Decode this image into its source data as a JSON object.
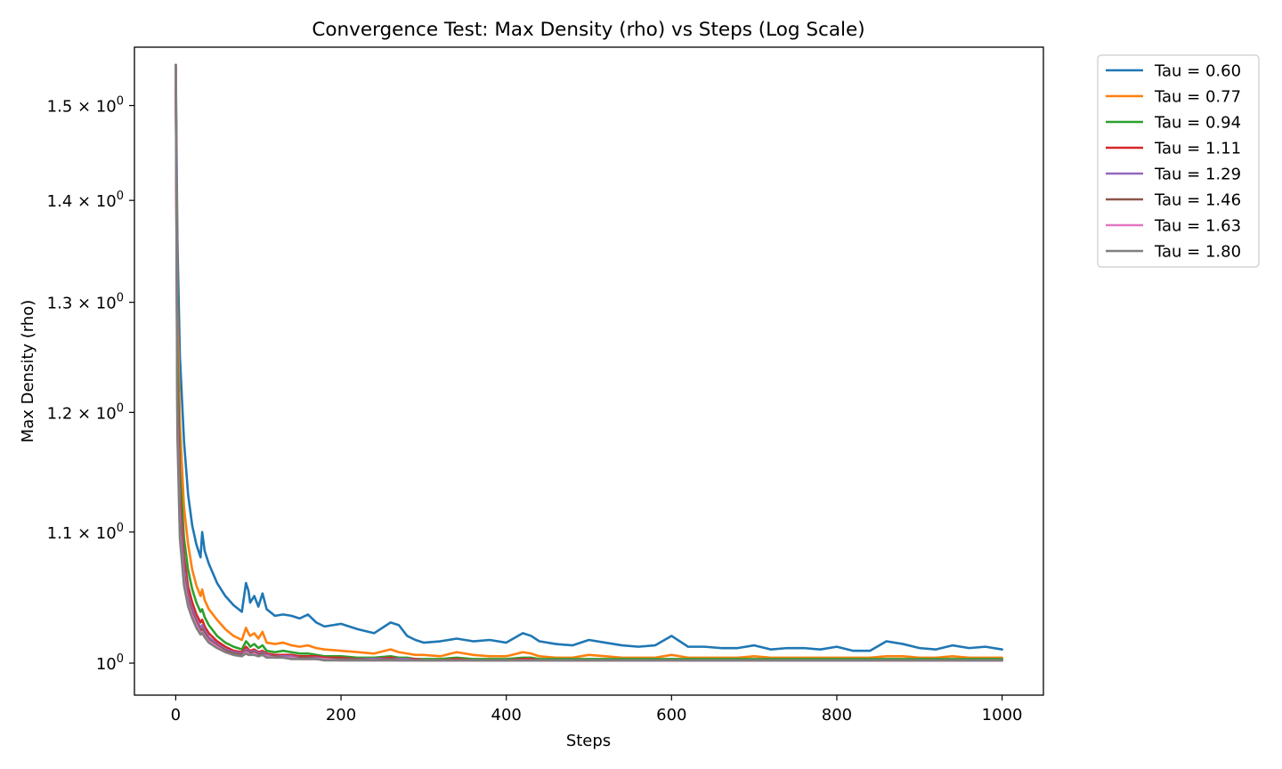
{
  "chart_data": {
    "type": "line",
    "title": "Convergence Test: Max Density (rho) vs Steps (Log Scale)",
    "xlabel": "Steps",
    "ylabel": "Max Density (rho)",
    "yscale": "log",
    "grid": false,
    "legend_position": "outside-top-right",
    "xlim": [
      -50,
      1050
    ],
    "ylim": [
      0.977,
      1.565
    ],
    "x_ticks": [
      0,
      200,
      400,
      600,
      800,
      1000
    ],
    "x_tick_labels": [
      "0",
      "200",
      "400",
      "600",
      "800",
      "1000"
    ],
    "y_ticks": [
      1.0,
      1.1,
      1.2,
      1.3,
      1.4,
      1.5
    ],
    "y_tick_labels": [
      {
        "base": "10",
        "exp": "0",
        "mant": ""
      },
      {
        "base": "10",
        "exp": "0",
        "mant": "1.1 × "
      },
      {
        "base": "10",
        "exp": "0",
        "mant": "1.2 × "
      },
      {
        "base": "10",
        "exp": "0",
        "mant": "1.3 × "
      },
      {
        "base": "10",
        "exp": "0",
        "mant": "1.4 × "
      },
      {
        "base": "10",
        "exp": "0",
        "mant": "1.5 × "
      }
    ],
    "x": [
      0,
      2,
      5,
      10,
      15,
      20,
      25,
      30,
      32,
      35,
      40,
      50,
      60,
      70,
      80,
      85,
      88,
      90,
      95,
      100,
      105,
      110,
      120,
      130,
      140,
      150,
      160,
      170,
      180,
      200,
      220,
      240,
      260,
      270,
      280,
      290,
      300,
      320,
      340,
      360,
      380,
      400,
      420,
      430,
      440,
      460,
      480,
      500,
      520,
      540,
      560,
      580,
      600,
      620,
      640,
      660,
      680,
      700,
      720,
      740,
      760,
      780,
      800,
      820,
      840,
      860,
      880,
      900,
      920,
      940,
      960,
      980,
      1000
    ],
    "series": [
      {
        "name": "Tau = 0.60",
        "color": "#1f77b4",
        "values": [
          1.545,
          1.36,
          1.25,
          1.175,
          1.13,
          1.105,
          1.09,
          1.08,
          1.1,
          1.085,
          1.075,
          1.06,
          1.05,
          1.043,
          1.038,
          1.06,
          1.054,
          1.045,
          1.05,
          1.042,
          1.052,
          1.04,
          1.035,
          1.036,
          1.035,
          1.033,
          1.036,
          1.03,
          1.027,
          1.029,
          1.025,
          1.022,
          1.03,
          1.028,
          1.02,
          1.017,
          1.015,
          1.016,
          1.018,
          1.016,
          1.017,
          1.015,
          1.022,
          1.02,
          1.016,
          1.014,
          1.013,
          1.017,
          1.015,
          1.013,
          1.012,
          1.013,
          1.02,
          1.012,
          1.012,
          1.011,
          1.011,
          1.013,
          1.01,
          1.011,
          1.011,
          1.01,
          1.012,
          1.009,
          1.009,
          1.016,
          1.014,
          1.011,
          1.01,
          1.013,
          1.011,
          1.012,
          1.01
        ]
      },
      {
        "name": "Tau = 0.77",
        "color": "#ff7f0e",
        "values": [
          1.545,
          1.3,
          1.19,
          1.12,
          1.09,
          1.07,
          1.058,
          1.05,
          1.055,
          1.047,
          1.04,
          1.032,
          1.025,
          1.02,
          1.017,
          1.026,
          1.022,
          1.02,
          1.022,
          1.018,
          1.023,
          1.015,
          1.014,
          1.015,
          1.013,
          1.012,
          1.013,
          1.011,
          1.01,
          1.009,
          1.008,
          1.007,
          1.01,
          1.008,
          1.007,
          1.006,
          1.006,
          1.005,
          1.008,
          1.006,
          1.005,
          1.005,
          1.008,
          1.007,
          1.005,
          1.004,
          1.004,
          1.006,
          1.005,
          1.004,
          1.004,
          1.004,
          1.006,
          1.004,
          1.004,
          1.004,
          1.004,
          1.005,
          1.004,
          1.004,
          1.004,
          1.004,
          1.004,
          1.004,
          1.004,
          1.005,
          1.005,
          1.004,
          1.004,
          1.005,
          1.004,
          1.004,
          1.004
        ]
      },
      {
        "name": "Tau = 0.94",
        "color": "#2ca02c",
        "values": [
          1.545,
          1.26,
          1.15,
          1.095,
          1.07,
          1.055,
          1.045,
          1.038,
          1.04,
          1.034,
          1.028,
          1.02,
          1.015,
          1.012,
          1.01,
          1.016,
          1.014,
          1.012,
          1.014,
          1.011,
          1.013,
          1.009,
          1.008,
          1.009,
          1.008,
          1.007,
          1.007,
          1.006,
          1.005,
          1.005,
          1.004,
          1.004,
          1.005,
          1.004,
          1.004,
          1.003,
          1.003,
          1.003,
          1.004,
          1.003,
          1.003,
          1.003,
          1.004,
          1.004,
          1.003,
          1.003,
          1.003,
          1.003,
          1.003,
          1.003,
          1.003,
          1.003,
          1.003,
          1.003,
          1.003,
          1.003,
          1.003,
          1.003,
          1.003,
          1.003,
          1.003,
          1.003,
          1.003,
          1.003,
          1.003,
          1.003,
          1.003,
          1.003,
          1.003,
          1.003,
          1.003,
          1.003,
          1.003
        ]
      },
      {
        "name": "Tau = 1.11",
        "color": "#d62728",
        "values": [
          1.545,
          1.23,
          1.13,
          1.08,
          1.057,
          1.045,
          1.036,
          1.03,
          1.032,
          1.027,
          1.022,
          1.016,
          1.012,
          1.009,
          1.008,
          1.012,
          1.01,
          1.009,
          1.01,
          1.008,
          1.009,
          1.007,
          1.006,
          1.006,
          1.006,
          1.005,
          1.005,
          1.005,
          1.004,
          1.004,
          1.003,
          1.003,
          1.004,
          1.003,
          1.003,
          1.003,
          1.002,
          1.002,
          1.003,
          1.002,
          1.002,
          1.002,
          1.003,
          1.003,
          1.002,
          1.002,
          1.002,
          1.002,
          1.002,
          1.002,
          1.002,
          1.002,
          1.002,
          1.002,
          1.002,
          1.002,
          1.002,
          1.002,
          1.002,
          1.002,
          1.002,
          1.002,
          1.002,
          1.002,
          1.002,
          1.002,
          1.002,
          1.002,
          1.002,
          1.002,
          1.002,
          1.002,
          1.002
        ]
      },
      {
        "name": "Tau = 1.29",
        "color": "#9467bd",
        "values": [
          1.545,
          1.21,
          1.12,
          1.072,
          1.05,
          1.04,
          1.032,
          1.026,
          1.028,
          1.024,
          1.019,
          1.014,
          1.01,
          1.008,
          1.007,
          1.01,
          1.009,
          1.008,
          1.009,
          1.007,
          1.008,
          1.006,
          1.005,
          1.005,
          1.005,
          1.004,
          1.004,
          1.004,
          1.003,
          1.003,
          1.003,
          1.003,
          1.003,
          1.003,
          1.003,
          1.002,
          1.002,
          1.002,
          1.002,
          1.002,
          1.002,
          1.002,
          1.002,
          1.002,
          1.002,
          1.002,
          1.002,
          1.002,
          1.002,
          1.002,
          1.002,
          1.002,
          1.002,
          1.002,
          1.002,
          1.002,
          1.002,
          1.002,
          1.002,
          1.002,
          1.002,
          1.002,
          1.002,
          1.002,
          1.002,
          1.002,
          1.002,
          1.002,
          1.002,
          1.002,
          1.002,
          1.002,
          1.002
        ]
      },
      {
        "name": "Tau = 1.46",
        "color": "#8c564b",
        "values": [
          1.545,
          1.2,
          1.11,
          1.066,
          1.047,
          1.037,
          1.03,
          1.024,
          1.025,
          1.022,
          1.017,
          1.013,
          1.009,
          1.007,
          1.006,
          1.009,
          1.008,
          1.007,
          1.008,
          1.006,
          1.007,
          1.005,
          1.005,
          1.004,
          1.004,
          1.004,
          1.004,
          1.003,
          1.003,
          1.003,
          1.003,
          1.002,
          1.003,
          1.002,
          1.002,
          1.002,
          1.002,
          1.002,
          1.002,
          1.002,
          1.002,
          1.002,
          1.002,
          1.002,
          1.002,
          1.002,
          1.002,
          1.002,
          1.002,
          1.002,
          1.002,
          1.002,
          1.002,
          1.002,
          1.002,
          1.002,
          1.002,
          1.002,
          1.002,
          1.002,
          1.002,
          1.002,
          1.002,
          1.002,
          1.002,
          1.002,
          1.002,
          1.002,
          1.002,
          1.002,
          1.002,
          1.002,
          1.002
        ]
      },
      {
        "name": "Tau = 1.63",
        "color": "#e377c2",
        "values": [
          1.545,
          1.19,
          1.1,
          1.062,
          1.044,
          1.035,
          1.028,
          1.022,
          1.023,
          1.02,
          1.016,
          1.012,
          1.008,
          1.006,
          1.005,
          1.008,
          1.007,
          1.006,
          1.007,
          1.005,
          1.006,
          1.005,
          1.004,
          1.004,
          1.004,
          1.003,
          1.003,
          1.003,
          1.003,
          1.002,
          1.002,
          1.002,
          1.002,
          1.002,
          1.002,
          1.002,
          1.002,
          1.002,
          1.002,
          1.002,
          1.002,
          1.002,
          1.002,
          1.002,
          1.002,
          1.002,
          1.002,
          1.002,
          1.002,
          1.002,
          1.002,
          1.002,
          1.002,
          1.002,
          1.002,
          1.002,
          1.002,
          1.002,
          1.002,
          1.002,
          1.002,
          1.002,
          1.002,
          1.002,
          1.002,
          1.002,
          1.002,
          1.002,
          1.002,
          1.002,
          1.002,
          1.002,
          1.002
        ]
      },
      {
        "name": "Tau = 1.80",
        "color": "#7f7f7f",
        "values": [
          1.545,
          1.18,
          1.095,
          1.058,
          1.042,
          1.033,
          1.026,
          1.021,
          1.022,
          1.019,
          1.015,
          1.011,
          1.008,
          1.006,
          1.005,
          1.007,
          1.006,
          1.006,
          1.006,
          1.005,
          1.006,
          1.004,
          1.004,
          1.004,
          1.003,
          1.003,
          1.003,
          1.003,
          1.002,
          1.002,
          1.002,
          1.002,
          1.002,
          1.002,
          1.002,
          1.002,
          1.002,
          1.002,
          1.002,
          1.002,
          1.002,
          1.002,
          1.002,
          1.002,
          1.002,
          1.002,
          1.002,
          1.002,
          1.002,
          1.002,
          1.002,
          1.002,
          1.002,
          1.002,
          1.002,
          1.002,
          1.002,
          1.002,
          1.002,
          1.002,
          1.002,
          1.002,
          1.002,
          1.002,
          1.002,
          1.002,
          1.002,
          1.002,
          1.002,
          1.002,
          1.002,
          1.002,
          1.002
        ]
      }
    ]
  }
}
